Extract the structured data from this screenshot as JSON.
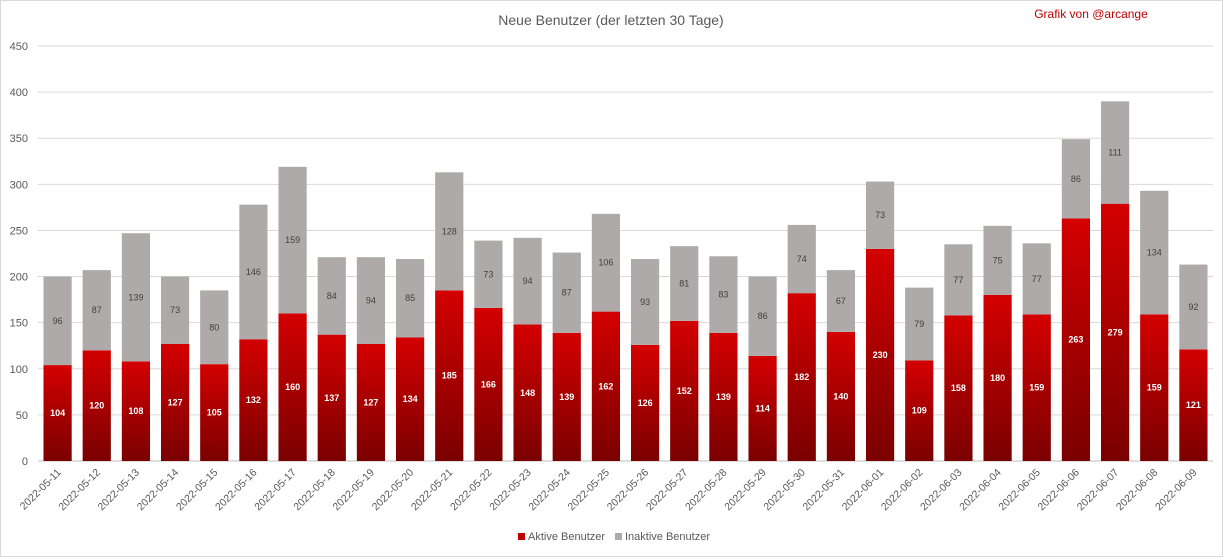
{
  "chart_data": {
    "type": "bar",
    "stacked": true,
    "title": "Neue Benutzer (der letzten 30 Tage)",
    "credit": "Grafik von @arcange",
    "ylim": [
      0,
      450
    ],
    "yticks": [
      0,
      50,
      100,
      150,
      200,
      250,
      300,
      350,
      400,
      450
    ],
    "grid": true,
    "legend_position": "bottom",
    "categories": [
      "2022-05-11",
      "2022-05-12",
      "2022-05-13",
      "2022-05-14",
      "2022-05-15",
      "2022-05-16",
      "2022-05-17",
      "2022-05-18",
      "2022-05-19",
      "2022-05-20",
      "2022-05-21",
      "2022-05-22",
      "2022-05-23",
      "2022-05-24",
      "2022-05-25",
      "2022-05-26",
      "2022-05-27",
      "2022-05-28",
      "2022-05-29",
      "2022-05-30",
      "2022-05-31",
      "2022-06-01",
      "2022-06-02",
      "2022-06-03",
      "2022-06-04",
      "2022-06-05",
      "2022-06-06",
      "2022-06-07",
      "2022-06-08",
      "2022-06-09"
    ],
    "series": [
      {
        "name": "Aktive Benutzer",
        "color": "#c00000",
        "values": [
          104,
          120,
          108,
          127,
          105,
          132,
          160,
          137,
          127,
          134,
          185,
          166,
          148,
          139,
          162,
          126,
          152,
          139,
          114,
          182,
          140,
          230,
          109,
          158,
          180,
          159,
          263,
          279,
          159,
          121
        ]
      },
      {
        "name": "Inaktive Benutzer",
        "color": "#aeaaaa",
        "values": [
          96,
          87,
          139,
          73,
          80,
          146,
          159,
          84,
          94,
          85,
          128,
          73,
          94,
          87,
          106,
          93,
          81,
          83,
          86,
          74,
          67,
          73,
          79,
          77,
          75,
          77,
          86,
          111,
          134,
          92
        ]
      }
    ]
  }
}
